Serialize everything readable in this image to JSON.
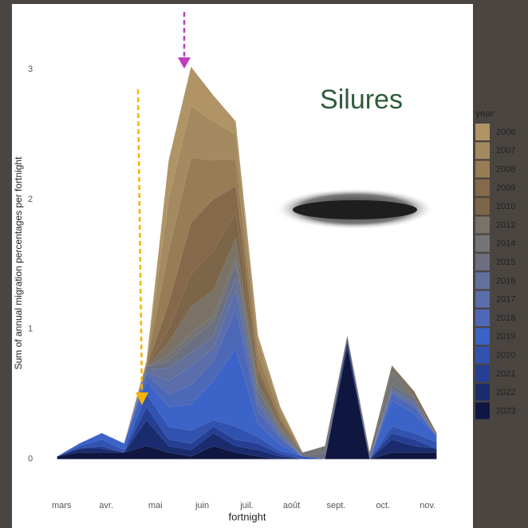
{
  "chart_data": {
    "type": "stacked-area",
    "title": "Silures",
    "x_label": "fortnight",
    "y_label": "Sum of annual migration percentages per fortnight",
    "legend_title": "year",
    "x": [
      1,
      2,
      3,
      4,
      5,
      6,
      7,
      8,
      9,
      10,
      11,
      12,
      13,
      14,
      15,
      16,
      17,
      18
    ],
    "xlim": [
      0.8,
      18.2
    ],
    "xticks": [
      {
        "value": 1.2,
        "label": "mars"
      },
      {
        "value": 3.2,
        "label": "avr."
      },
      {
        "value": 5.4,
        "label": "mai"
      },
      {
        "value": 7.5,
        "label": "juin"
      },
      {
        "value": 9.5,
        "label": "juil."
      },
      {
        "value": 11.5,
        "label": "août"
      },
      {
        "value": 13.5,
        "label": "sept."
      },
      {
        "value": 15.6,
        "label": "oct."
      },
      {
        "value": 17.6,
        "label": "nov."
      }
    ],
    "ylim": [
      -0.15,
      3.35
    ],
    "yticks": [
      0,
      1,
      2,
      3
    ],
    "series": [
      {
        "name": "2006",
        "color": "#b09466",
        "values": [
          0,
          0,
          0,
          0,
          0,
          0.3,
          0.3,
          0.2,
          0.1,
          0.05,
          0.02,
          0,
          0,
          0,
          0,
          0,
          0,
          0
        ]
      },
      {
        "name": "2007",
        "color": "#a48a60",
        "values": [
          0,
          0,
          0,
          0,
          0.02,
          0.4,
          0.4,
          0.3,
          0.2,
          0.1,
          0.04,
          0,
          0,
          0,
          0,
          0,
          0,
          0
        ]
      },
      {
        "name": "2008",
        "color": "#977d56",
        "values": [
          0,
          0,
          0,
          0,
          0.02,
          0.4,
          0.5,
          0.3,
          0.2,
          0.1,
          0.04,
          0,
          0,
          0,
          0,
          0,
          0,
          0
        ]
      },
      {
        "name": "2009",
        "color": "#86694a",
        "values": [
          0,
          0,
          0,
          0,
          0,
          0.2,
          0.4,
          0.4,
          0.2,
          0.05,
          0.02,
          0,
          0,
          0,
          0,
          0,
          0,
          0
        ]
      },
      {
        "name": "2010",
        "color": "#7c6549",
        "values": [
          0,
          0,
          0,
          0,
          0,
          0.1,
          0.25,
          0.3,
          0.2,
          0.05,
          0.02,
          0,
          0,
          0,
          0,
          0,
          0.02,
          0.02
        ]
      },
      {
        "name": "2012",
        "color": "#7a7266",
        "values": [
          0,
          0,
          0,
          0,
          0,
          0.1,
          0.2,
          0.2,
          0.15,
          0.05,
          0.02,
          0,
          0,
          0,
          0,
          0.05,
          0.03,
          0
        ]
      },
      {
        "name": "2014",
        "color": "#747375",
        "values": [
          0,
          0,
          0,
          0,
          0,
          0.05,
          0.05,
          0.05,
          0.05,
          0.03,
          0.02,
          0.03,
          0.05,
          0,
          0.05,
          0.1,
          0,
          0
        ]
      },
      {
        "name": "2015",
        "color": "#6b6f80",
        "values": [
          0,
          0,
          0,
          0,
          0.02,
          0.05,
          0.1,
          0.1,
          0.1,
          0.05,
          0.02,
          0,
          0.05,
          0.05,
          0,
          0.03,
          0.03,
          0
        ]
      },
      {
        "name": "2016",
        "color": "#63719a",
        "values": [
          0,
          0,
          0,
          0,
          0.02,
          0.1,
          0.1,
          0.1,
          0.1,
          0.05,
          0.02,
          0,
          0,
          0,
          0,
          0.02,
          0.02,
          0
        ]
      },
      {
        "name": "2017",
        "color": "#5b6daa",
        "values": [
          0,
          0,
          0,
          0,
          0.02,
          0.1,
          0.15,
          0.1,
          0.15,
          0.05,
          0.02,
          0,
          0,
          0,
          0,
          0.02,
          0.02,
          0
        ]
      },
      {
        "name": "2018",
        "color": "#4e68b8",
        "values": [
          0,
          0,
          0,
          0,
          0.05,
          0.1,
          0.15,
          0.15,
          0.3,
          0.1,
          0.05,
          0,
          0,
          0,
          0,
          0.05,
          0.05,
          0
        ]
      },
      {
        "name": "2019",
        "color": "#3c63c8",
        "values": [
          0,
          0.02,
          0.05,
          0.05,
          0.1,
          0.15,
          0.2,
          0.3,
          0.6,
          0.1,
          0.05,
          0,
          0,
          0,
          0,
          0.2,
          0.15,
          0.05
        ]
      },
      {
        "name": "2020",
        "color": "#3252b0",
        "values": [
          0,
          0.02,
          0.05,
          0.02,
          0.1,
          0.1,
          0.1,
          0.05,
          0.1,
          0.05,
          0.02,
          0.02,
          0,
          0,
          0,
          0.05,
          0.05,
          0.05
        ]
      },
      {
        "name": "2021",
        "color": "#263f94",
        "values": [
          0,
          0,
          0.02,
          0,
          0.1,
          0.05,
          0.05,
          0.05,
          0.05,
          0.05,
          0.02,
          0,
          0,
          0,
          0,
          0.05,
          0.05,
          0
        ]
      },
      {
        "name": "2022",
        "color": "#1b2c6e",
        "values": [
          0,
          0.03,
          0.03,
          0,
          0.2,
          0.05,
          0.05,
          0.1,
          0.05,
          0.05,
          0.02,
          0,
          0,
          0.05,
          0,
          0.1,
          0.05,
          0.03
        ]
      },
      {
        "name": "2023",
        "color": "#0f1640",
        "values": [
          0.02,
          0.05,
          0.05,
          0.05,
          0.1,
          0.05,
          0.02,
          0.1,
          0.05,
          0.02,
          0,
          0,
          0,
          0.85,
          0,
          0.05,
          0.05,
          0.05
        ]
      }
    ]
  }
}
